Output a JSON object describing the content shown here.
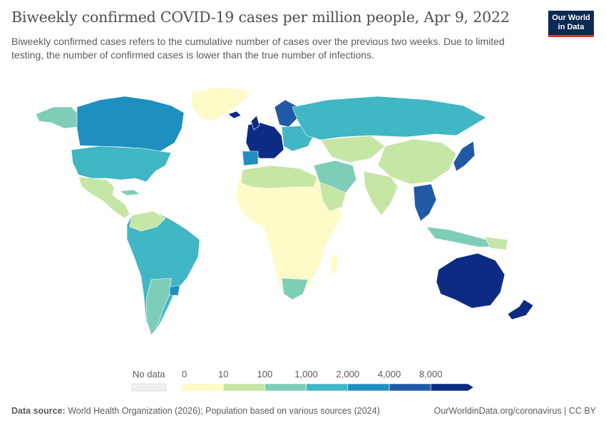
{
  "header": {
    "title": "Biweekly confirmed COVID-19 cases per million people, Apr 9, 2022",
    "subtitle": "Biweekly confirmed cases refers to the cumulative number of cases over the previous two weeks. Due to limited testing, the number of confirmed cases is lower than the true number of infections.",
    "logo_line1": "Our World",
    "logo_line2": "in Data"
  },
  "legend": {
    "no_data_label": "No data",
    "ticks": [
      "0",
      "10",
      "100",
      "1,000",
      "2,000",
      "4,000",
      "8,000"
    ],
    "bin_colors": [
      "#fdfbc7",
      "#c6e6a6",
      "#7ecdb8",
      "#41b6c4",
      "#1f8fbf",
      "#2259a6",
      "#0c2c84"
    ]
  },
  "footer": {
    "source_label": "Data source:",
    "source_text": "World Health Organization (2026); Population based on various sources (2024)",
    "url": "OurWorldinData.org/coronavirus | CC BY"
  }
}
